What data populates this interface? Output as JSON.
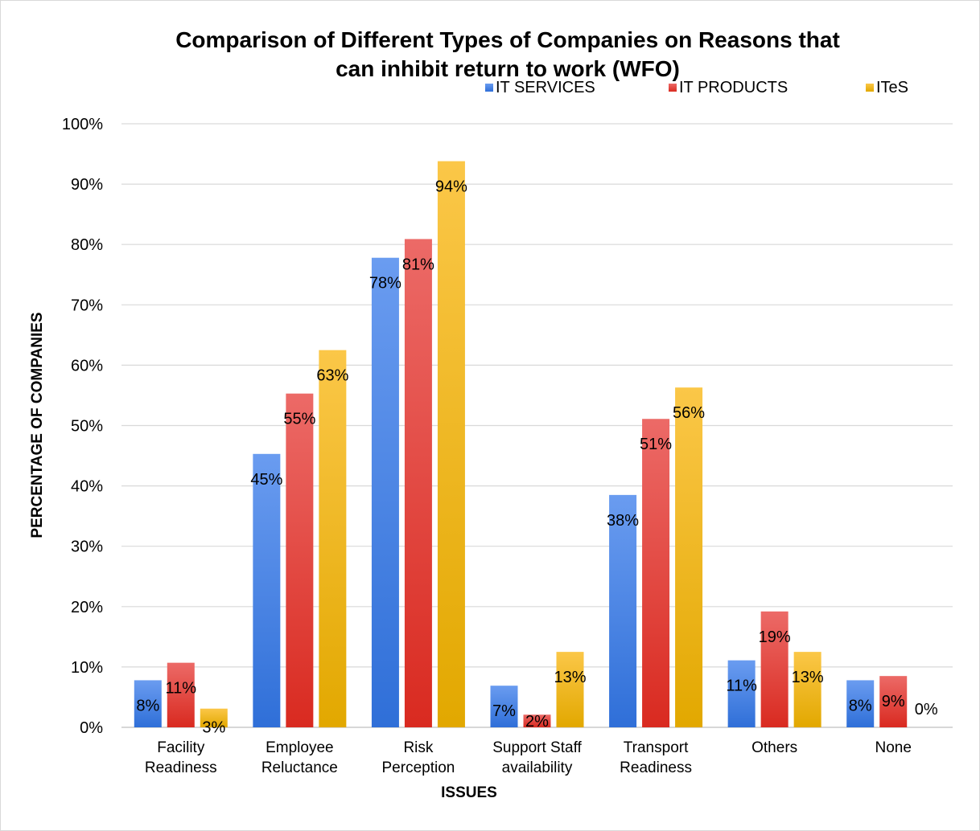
{
  "chart_data": {
    "type": "bar",
    "title_line1": "Comparison of Different Types of Companies on Reasons that",
    "title_line2": "can inhibit return to work (WFO)",
    "xlabel": "ISSUES",
    "ylabel": "PERCENTAGE OF COMPANIES",
    "categories": [
      [
        "Facility",
        "Readiness"
      ],
      [
        "Employee",
        "Reluctance"
      ],
      [
        "Risk",
        "Perception"
      ],
      [
        "Support Staff",
        "availability"
      ],
      [
        "Transport",
        "Readiness"
      ],
      [
        "Others"
      ],
      [
        "None"
      ]
    ],
    "ylim": [
      0,
      100
    ],
    "ytick_step": 10,
    "ytick_suffix": "%",
    "grid": true,
    "legend_position": "top",
    "series": [
      {
        "name": "IT SERVICES",
        "color_top": "#6a9cf0",
        "color_bottom": "#2f6fd8",
        "values": [
          7.8,
          45.3,
          77.8,
          6.9,
          38.5,
          11.1,
          7.8
        ],
        "labels": [
          "8%",
          "45%",
          "78%",
          "7%",
          "38%",
          "11%",
          "8%"
        ]
      },
      {
        "name": "IT PRODUCTS",
        "color_top": "#ec6a67",
        "color_bottom": "#d92a20",
        "values": [
          10.7,
          55.3,
          80.9,
          2.1,
          51.1,
          19.2,
          8.5
        ],
        "labels": [
          "11%",
          "55%",
          "81%",
          "2%",
          "51%",
          "19%",
          "9%"
        ]
      },
      {
        "name": "ITeS",
        "color_top": "#fbc748",
        "color_bottom": "#e2a800",
        "values": [
          3.1,
          62.5,
          93.8,
          12.5,
          56.3,
          12.5,
          0
        ],
        "labels": [
          "3%",
          "63%",
          "94%",
          "13%",
          "56%",
          "13%",
          "0%"
        ]
      }
    ]
  }
}
